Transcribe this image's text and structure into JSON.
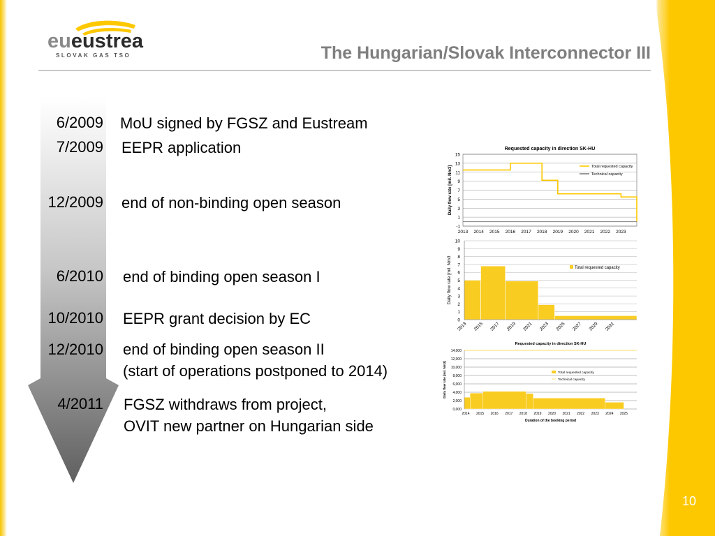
{
  "logo": {
    "brand": "eustream",
    "tagline": "SLOVAK GAS TSO"
  },
  "title": "The Hungarian/Slovak Interconnector III",
  "timeline": [
    {
      "date": "6/2009",
      "event": [
        "MoU signed by FGSZ and Eustream"
      ]
    },
    {
      "date": "7/2009",
      "event": [
        "EEPR application"
      ]
    },
    {
      "date": "12/2009",
      "event": [
        "end of non-binding open season"
      ]
    },
    {
      "date": "6/2010",
      "event": [
        "end of binding open season I"
      ]
    },
    {
      "date": "10/2010",
      "event": [
        "EEPR grant decision by EC"
      ]
    },
    {
      "date": "12/2010",
      "event": [
        "end of binding open season II",
        "(start of operations postponed to 2014)"
      ]
    },
    {
      "date": "4/2011",
      "event": [
        "FGSZ withdraws from project,",
        "OVIT new partner on Hungarian side"
      ]
    }
  ],
  "page_number": "10",
  "colors": {
    "accent": "#fdc800",
    "title_gray": "#7f7f7f",
    "bar_fill": "#f9cc22"
  },
  "chart_data": [
    {
      "type": "line",
      "title": "Requested capacity in direction SK-HU",
      "ylabel": "Daily flow rate [mil. Nm3]",
      "xlabel": "",
      "ylim": [
        -1,
        15
      ],
      "yticks": [
        15,
        13,
        11,
        9,
        7,
        5,
        3,
        1,
        -1
      ],
      "x": [
        "2013",
        "2014",
        "2015",
        "2016",
        "2017",
        "2018",
        "2019",
        "2020",
        "2021",
        "2022",
        "2023"
      ],
      "xrange": [
        2013,
        2024
      ],
      "series": [
        {
          "name": "Total requested capacity",
          "color": "#fdc800",
          "step": true,
          "points": [
            [
              2013,
              11.5
            ],
            [
              2016,
              11.5
            ],
            [
              2016,
              13
            ],
            [
              2018,
              13
            ],
            [
              2018,
              9.2
            ],
            [
              2019,
              9.2
            ],
            [
              2019,
              6.2
            ],
            [
              2023,
              6.2
            ],
            [
              2023,
              5.5
            ],
            [
              2024,
              5.5
            ],
            [
              2024,
              0
            ]
          ]
        },
        {
          "name": "Technical capacity",
          "color": "#7f7f7f",
          "step": true,
          "points": [
            [
              2013,
              0
            ],
            [
              2024,
              0
            ]
          ]
        }
      ],
      "legend": "right",
      "grid": true
    },
    {
      "type": "bar",
      "title": "",
      "ylabel": "Daily flow rate [mil. Nm3",
      "xlabel": "",
      "ylim": [
        0,
        10
      ],
      "yticks": [
        10,
        9,
        8,
        7,
        6,
        5,
        4,
        3,
        2,
        1,
        0
      ],
      "xticks": [
        "2013",
        "2015",
        "2017",
        "2019",
        "2021",
        "2023",
        "2025",
        "2027",
        "2029",
        "2031"
      ],
      "xrange": [
        2013,
        2034
      ],
      "series": [
        {
          "name": "Total requested capacity",
          "color": "#f9cc22",
          "segments": [
            [
              2013,
              2015,
              5
            ],
            [
              2015,
              2018,
              6.8
            ],
            [
              2018,
              2022,
              4.9
            ],
            [
              2022,
              2024,
              1.9
            ],
            [
              2024,
              2034,
              0.5
            ]
          ]
        }
      ],
      "legend": "right",
      "grid": true
    },
    {
      "type": "bar",
      "title": "Requested capacity in direction SK-HU",
      "ylabel": "Daily flow rate [mil. Nm3]",
      "xlabel": "Duration of the booking period",
      "ylim": [
        0,
        14000
      ],
      "ytick_labels": [
        "14,000",
        "12,000",
        "10,000",
        "8,000",
        "6,000",
        "4,000",
        "2,000",
        "0,000"
      ],
      "yticks": [
        14000,
        12000,
        10000,
        8000,
        6000,
        4000,
        2000,
        0
      ],
      "xticks": [
        "2014",
        "2015",
        "2016",
        "2017",
        "2018",
        "2019",
        "2020",
        "2021",
        "2022",
        "2023",
        "2024",
        "2025"
      ],
      "xrange": [
        2014,
        2026
      ],
      "series": [
        {
          "name": "Total requested capacity",
          "color": "#f9cc22",
          "segments": [
            [
              2014,
              2014.4,
              2800
            ],
            [
              2014.4,
              2015.3,
              3800
            ],
            [
              2015.3,
              2018.3,
              4200
            ],
            [
              2018.3,
              2018.8,
              3700
            ],
            [
              2018.8,
              2023.8,
              2600
            ],
            [
              2023.8,
              2025.1,
              1600
            ]
          ]
        },
        {
          "name": "Technical capacity",
          "color": "#fde58a",
          "line_value": 14000
        }
      ],
      "legend": "right",
      "grid": true
    }
  ]
}
